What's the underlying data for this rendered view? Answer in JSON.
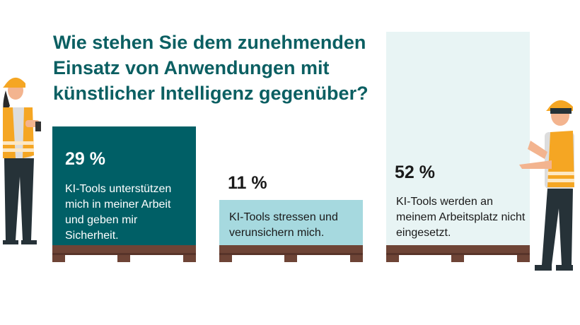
{
  "chart_data": {
    "type": "bar",
    "title": "Wie stehen Sie dem zunehmenden Einsatz von Anwendungen mit künstlicher Intelligenz gegenüber?",
    "categories": [
      "KI-Tools unterstützen mich in meiner Arbeit und geben mir Sicherheit.",
      "KI-Tools stressen und verunsichern mich.",
      "KI-Tools werden an meinem Arbeitsplatz nicht eingesetzt."
    ],
    "values": [
      29,
      11,
      52
    ],
    "value_labels": [
      "29 %",
      "11 %",
      "52 %"
    ],
    "unit": "%",
    "ylim": [
      0,
      52
    ],
    "colors": [
      "#005f66",
      "#a6d9df",
      "#e8f4f4"
    ],
    "text_colors": [
      "#ffffff",
      "#1a1a1a",
      "#1a1a1a"
    ],
    "pallet_color": "#6e4436"
  }
}
